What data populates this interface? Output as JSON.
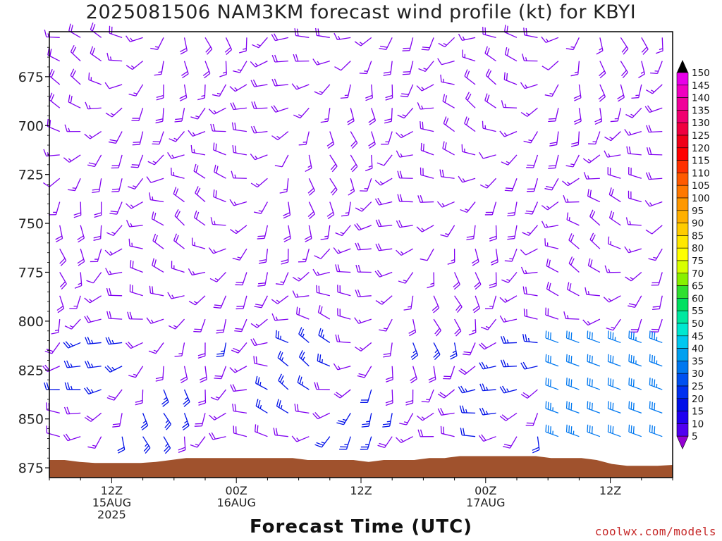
{
  "title": "2025081506 NAM3KM forecast wind profile (kt) for KBYI",
  "xlabel": "Forecast Time (UTC)",
  "credit": "coolwx.com/models",
  "chart_data": {
    "type": "wind_barb_profile",
    "y_ticks": [
      675,
      700,
      725,
      750,
      775,
      800,
      825,
      850,
      875
    ],
    "ylim": [
      652,
      880
    ],
    "y_axis": "pressure (hPa), inverted",
    "x_ticks": [
      {
        "hour": 6,
        "lines": [
          "12Z",
          "15AUG",
          "2025"
        ]
      },
      {
        "hour": 18,
        "lines": [
          "00Z",
          "16AUG"
        ]
      },
      {
        "hour": 30,
        "lines": [
          "12Z"
        ]
      },
      {
        "hour": 42,
        "lines": [
          "00Z",
          "17AUG"
        ]
      },
      {
        "hour": 54,
        "lines": [
          "12Z"
        ]
      }
    ],
    "xlim": [
      0,
      60
    ],
    "legend": {
      "position": "right",
      "labels": [
        150,
        145,
        140,
        135,
        130,
        125,
        120,
        115,
        110,
        105,
        100,
        95,
        90,
        85,
        80,
        75,
        70,
        65,
        60,
        55,
        50,
        45,
        40,
        35,
        30,
        25,
        20,
        15,
        10,
        5
      ],
      "colors": [
        "#e800e8",
        "#f000c0",
        "#f0009a",
        "#f00070",
        "#f00040",
        "#f00018",
        "#ff0000",
        "#ff3000",
        "#ff5a00",
        "#ff7800",
        "#ff9800",
        "#ffb000",
        "#ffcc00",
        "#ffe800",
        "#ffff00",
        "#d8ff00",
        "#88f000",
        "#30e030",
        "#00e060",
        "#00e8a0",
        "#00e8d0",
        "#00c8f0",
        "#00a0f0",
        "#0078f0",
        "#0050f0",
        "#0030f0",
        "#0010e8",
        "#2000f0",
        "#5000f0",
        "#8000f0"
      ],
      "top_arrow_color": "#000000",
      "bottom_arrow_color": "#9400d3"
    },
    "ground_color": "#a0522d",
    "barb_colors": {
      "light": "#8000f0",
      "moderate": "#0010e8",
      "strong": "#0078f0"
    }
  }
}
